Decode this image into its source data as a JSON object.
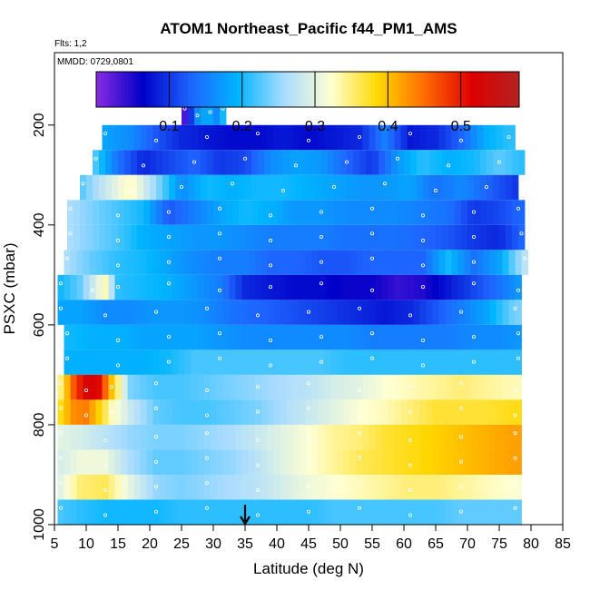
{
  "chart_data": {
    "type": "heatmap",
    "title": "ATOM1 Northeast_Pacific f44_PM1_AMS",
    "flights_note": "Flts: 1,2",
    "date_note": "MMDD: 0729,0801",
    "xlabel": "Latitude (deg N)",
    "ylabel": "PSXC (mbar)",
    "xlim": [
      5,
      85
    ],
    "ylim": [
      1000,
      55
    ],
    "x_ticks": [
      "5",
      "10",
      "15",
      "20",
      "25",
      "30",
      "35",
      "40",
      "45",
      "50",
      "55",
      "60",
      "65",
      "70",
      "75",
      "80",
      "85"
    ],
    "y_ticks": [
      "200",
      "400",
      "600",
      "800",
      "1000"
    ],
    "colorbar": {
      "range": [
        0.0,
        0.58
      ],
      "ticks": [
        "0.1",
        "0.2",
        "0.3",
        "0.4",
        "0.5"
      ],
      "tick_values": [
        0.1,
        0.2,
        0.3,
        0.4,
        0.5
      ],
      "colors": [
        "#8a2be2",
        "#0000c8",
        "#1e64ff",
        "#00b4ff",
        "#aadcff",
        "#ffffd2",
        "#ffd700",
        "#ff6a00",
        "#dd0000",
        "#b22222"
      ]
    },
    "rows": [
      {
        "p": 175,
        "x": [
          25.5,
          26.5,
          27.5,
          28.5,
          29.5,
          30.5,
          31.5
        ],
        "v": [
          0.03,
          0.1,
          0.16,
          0.18,
          0.18,
          0.16,
          0.2
        ]
      },
      {
        "p": 225,
        "x": [
          13,
          17,
          21,
          25,
          29,
          33,
          37,
          41,
          45,
          49,
          53,
          57,
          61,
          65,
          69,
          73,
          76.5
        ],
        "v": [
          0.18,
          0.16,
          0.12,
          0.09,
          0.08,
          0.07,
          0.07,
          0.08,
          0.07,
          0.08,
          0.09,
          0.15,
          0.08,
          0.09,
          0.13,
          0.19,
          0.21
        ]
      },
      {
        "p": 275,
        "x": [
          11.5,
          15,
          19,
          23,
          27,
          31,
          35,
          39,
          43,
          47,
          51,
          55,
          59,
          63,
          67,
          71,
          75,
          78
        ],
        "v": [
          0.22,
          0.14,
          0.09,
          0.11,
          0.13,
          0.1,
          0.11,
          0.16,
          0.18,
          0.17,
          0.13,
          0.1,
          0.17,
          0.21,
          0.19,
          0.2,
          0.23,
          0.21
        ]
      },
      {
        "p": 325,
        "x": [
          9.5,
          13,
          17,
          21,
          25,
          29,
          33,
          37,
          41,
          45,
          49,
          53,
          57,
          61,
          65,
          69,
          73,
          77.5
        ],
        "v": [
          0.23,
          0.28,
          0.33,
          0.25,
          0.16,
          0.2,
          0.19,
          0.2,
          0.2,
          0.19,
          0.18,
          0.17,
          0.17,
          0.18,
          0.14,
          0.16,
          0.13,
          0.1
        ]
      },
      {
        "p": 375,
        "x": [
          7.5,
          11,
          15,
          19,
          23,
          27,
          31,
          35,
          39,
          43,
          47,
          51,
          55,
          59,
          63,
          67,
          71,
          75,
          78
        ],
        "v": [
          0.26,
          0.24,
          0.22,
          0.2,
          0.12,
          0.15,
          0.18,
          0.2,
          0.19,
          0.17,
          0.17,
          0.16,
          0.16,
          0.16,
          0.15,
          0.14,
          0.1,
          0.11,
          0.13
        ]
      },
      {
        "p": 425,
        "x": [
          7.5,
          11,
          15,
          19,
          23,
          27,
          31,
          35,
          39,
          43,
          47,
          51,
          55,
          59,
          63,
          67,
          71,
          75,
          78.5
        ],
        "v": [
          0.26,
          0.24,
          0.22,
          0.19,
          0.18,
          0.17,
          0.17,
          0.16,
          0.15,
          0.15,
          0.15,
          0.14,
          0.14,
          0.14,
          0.13,
          0.12,
          0.1,
          0.09,
          0.13
        ]
      },
      {
        "p": 475,
        "x": [
          7,
          11,
          15,
          19,
          23,
          27,
          31,
          35,
          39,
          43,
          47,
          51,
          55,
          59,
          63,
          67,
          71,
          75,
          79
        ],
        "v": [
          0.26,
          0.23,
          0.21,
          0.2,
          0.18,
          0.16,
          0.15,
          0.15,
          0.13,
          0.13,
          0.12,
          0.12,
          0.13,
          0.13,
          0.13,
          0.2,
          0.14,
          0.18,
          0.27
        ]
      },
      {
        "p": 525,
        "x": [
          6,
          9,
          11,
          13,
          15,
          19,
          23,
          27,
          31,
          35,
          39,
          43,
          47,
          51,
          55,
          59,
          63,
          67,
          71,
          75,
          78
        ],
        "v": [
          0.2,
          0.23,
          0.28,
          0.33,
          0.21,
          0.2,
          0.19,
          0.17,
          0.15,
          0.09,
          0.08,
          0.07,
          0.07,
          0.06,
          0.06,
          0.04,
          0.05,
          0.08,
          0.11,
          0.14,
          0.17
        ]
      },
      {
        "p": 575,
        "x": [
          6,
          9,
          13,
          17,
          21,
          25,
          29,
          33,
          37,
          41,
          45,
          49,
          53,
          57,
          61,
          65,
          69,
          73,
          77.5
        ],
        "v": [
          0.18,
          0.18,
          0.16,
          0.16,
          0.17,
          0.17,
          0.16,
          0.14,
          0.13,
          0.12,
          0.11,
          0.1,
          0.09,
          0.08,
          0.09,
          0.12,
          0.15,
          0.18,
          0.24
        ]
      },
      {
        "p": 625,
        "x": [
          7,
          11,
          15,
          19,
          23,
          27,
          31,
          35,
          39,
          43,
          47,
          51,
          55,
          59,
          63,
          67,
          71,
          75,
          78
        ],
        "v": [
          0.2,
          0.19,
          0.19,
          0.18,
          0.18,
          0.18,
          0.17,
          0.16,
          0.16,
          0.16,
          0.16,
          0.16,
          0.15,
          0.15,
          0.15,
          0.15,
          0.16,
          0.16,
          0.17
        ]
      },
      {
        "p": 675,
        "x": [
          7,
          11,
          15,
          19,
          23,
          27,
          31,
          35,
          39,
          43,
          47,
          51,
          55,
          59,
          63,
          67,
          71,
          75,
          78
        ],
        "v": [
          0.19,
          0.19,
          0.19,
          0.19,
          0.2,
          0.22,
          0.22,
          0.22,
          0.22,
          0.22,
          0.22,
          0.21,
          0.21,
          0.21,
          0.21,
          0.21,
          0.21,
          0.21,
          0.21
        ]
      },
      {
        "p": 725,
        "x": [
          6,
          8,
          10,
          12,
          14,
          17,
          21,
          25,
          29,
          33,
          37,
          41,
          45,
          49,
          53,
          57,
          61,
          65,
          69,
          73,
          77.5
        ],
        "v": [
          0.35,
          0.46,
          0.53,
          0.51,
          0.4,
          0.24,
          0.22,
          0.22,
          0.23,
          0.24,
          0.25,
          0.26,
          0.27,
          0.29,
          0.3,
          0.32,
          0.33,
          0.34,
          0.35,
          0.34,
          0.33
        ]
      },
      {
        "p": 775,
        "x": [
          6,
          8,
          10,
          12,
          14,
          17,
          21,
          25,
          29,
          33,
          37,
          41,
          45,
          49,
          53,
          57,
          61,
          65,
          69,
          73,
          77.5
        ],
        "v": [
          0.38,
          0.43,
          0.44,
          0.39,
          0.33,
          0.28,
          0.23,
          0.22,
          0.22,
          0.23,
          0.24,
          0.26,
          0.28,
          0.3,
          0.32,
          0.33,
          0.35,
          0.37,
          0.37,
          0.37,
          0.38
        ]
      },
      {
        "p": 825,
        "x": [
          6,
          9,
          13,
          17,
          21,
          25,
          29,
          33,
          37,
          41,
          45,
          49,
          53,
          57,
          61,
          65,
          69,
          73,
          77.5
        ],
        "v": [
          0.3,
          0.29,
          0.27,
          0.25,
          0.24,
          0.24,
          0.25,
          0.26,
          0.28,
          0.3,
          0.32,
          0.34,
          0.35,
          0.37,
          0.38,
          0.39,
          0.4,
          0.41,
          0.42
        ]
      },
      {
        "p": 875,
        "x": [
          6,
          9,
          13,
          17,
          21,
          25,
          29,
          33,
          37,
          41,
          45,
          49,
          53,
          57,
          61,
          65,
          69,
          73,
          77.5
        ],
        "v": [
          0.29,
          0.31,
          0.31,
          0.26,
          0.23,
          0.23,
          0.24,
          0.25,
          0.27,
          0.3,
          0.32,
          0.34,
          0.36,
          0.37,
          0.38,
          0.39,
          0.4,
          0.41,
          0.42
        ]
      },
      {
        "p": 925,
        "x": [
          6,
          9,
          13,
          17,
          21,
          25,
          29,
          33,
          37,
          41,
          45,
          49,
          53,
          57,
          61,
          65,
          69,
          73,
          77.5
        ],
        "v": [
          0.3,
          0.35,
          0.36,
          0.3,
          0.25,
          0.24,
          0.25,
          0.26,
          0.27,
          0.29,
          0.31,
          0.32,
          0.33,
          0.34,
          0.35,
          0.35,
          0.34,
          0.33,
          0.32
        ]
      },
      {
        "p": 975,
        "x": [
          6,
          9,
          13,
          17,
          21,
          25,
          29,
          33,
          37,
          41,
          45,
          49,
          53,
          57,
          61,
          65,
          69,
          73,
          77.5
        ],
        "v": [
          0.22,
          0.21,
          0.2,
          0.2,
          0.2,
          0.21,
          0.21,
          0.21,
          0.21,
          0.21,
          0.21,
          0.22,
          0.22,
          0.22,
          0.22,
          0.22,
          0.23,
          0.23,
          0.23
        ]
      }
    ],
    "marker_latitude": 35
  }
}
